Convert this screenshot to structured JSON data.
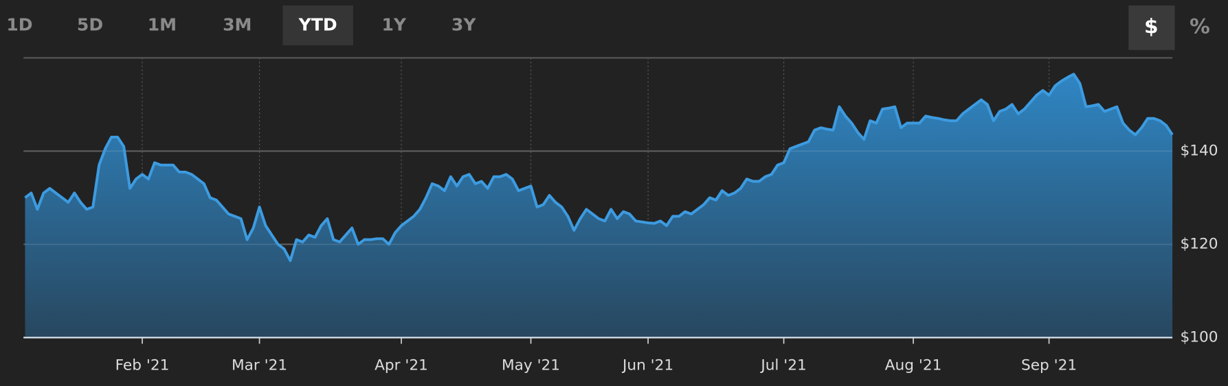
{
  "range_buttons": [
    "1D",
    "5D",
    "1M",
    "3M",
    "YTD",
    "1Y",
    "3Y"
  ],
  "selected_range": "YTD",
  "unit_buttons": [
    "$",
    "%"
  ],
  "selected_unit": "$",
  "chart_data": {
    "type": "area",
    "color": "#3d9be0",
    "categories": [
      null,
      null,
      null,
      null,
      null,
      null,
      null,
      null,
      null,
      null,
      null,
      null,
      null,
      null,
      null,
      null,
      null,
      null,
      null,
      "Feb '21",
      null,
      null,
      null,
      null,
      null,
      null,
      null,
      null,
      null,
      null,
      null,
      null,
      null,
      null,
      null,
      null,
      null,
      null,
      "Mar '21",
      null,
      null,
      null,
      null,
      null,
      null,
      null,
      null,
      null,
      null,
      null,
      null,
      null,
      null,
      null,
      null,
      null,
      null,
      null,
      null,
      null,
      null,
      "Apr '21",
      null,
      null,
      null,
      null,
      null,
      null,
      null,
      null,
      null,
      null,
      null,
      null,
      null,
      null,
      null,
      null,
      null,
      null,
      null,
      null,
      "May '21",
      null,
      null,
      null,
      null,
      null,
      null,
      null,
      null,
      null,
      null,
      null,
      null,
      null,
      null,
      null,
      null,
      null,
      null,
      "Jun '21",
      null,
      null,
      null,
      null,
      null,
      null,
      null,
      null,
      null,
      null,
      null,
      null,
      null,
      null,
      null,
      null,
      null,
      null,
      null,
      null,
      null,
      "Jul '21",
      null,
      null,
      null,
      null,
      null,
      null,
      null,
      null,
      null,
      null,
      null,
      null,
      null,
      null,
      null,
      null,
      null,
      null,
      null,
      null,
      "Aug '21",
      null,
      null,
      null,
      null,
      null,
      null,
      null,
      null,
      null,
      null,
      null,
      null,
      null,
      null,
      null,
      null,
      null,
      null,
      null,
      null,
      null,
      "Sep '21",
      null,
      null,
      null,
      null,
      null,
      null,
      null,
      null,
      null,
      null,
      null,
      null,
      null,
      null,
      null,
      null,
      null,
      null,
      null,
      null
    ],
    "values": [
      130,
      131,
      127.5,
      131,
      132,
      131,
      130,
      129,
      131,
      129,
      127.5,
      128,
      137,
      140.5,
      143,
      143,
      141,
      132,
      134,
      135,
      134,
      137.5,
      137,
      137,
      137,
      135.5,
      135.5,
      135,
      134,
      133,
      130,
      129.5,
      128,
      126.5,
      126,
      125.5,
      121,
      123.5,
      128,
      124,
      122,
      120,
      119,
      116.5,
      121,
      120.5,
      122,
      121.5,
      124,
      125.5,
      121,
      120.5,
      122,
      123.5,
      120,
      121,
      121,
      121.2,
      121.2,
      120,
      122.5,
      124,
      125,
      126,
      127.5,
      130,
      133,
      132.5,
      131.5,
      134.5,
      132.5,
      134.5,
      135,
      133,
      133.5,
      132,
      134.5,
      134.5,
      135,
      134,
      131.5,
      132,
      132.5,
      128,
      128.5,
      130.5,
      129,
      128,
      126,
      123,
      125.5,
      127.5,
      126.5,
      125.5,
      125,
      127.5,
      125.5,
      127,
      126.5,
      125,
      124.8,
      124.6,
      124.5,
      125,
      124,
      126,
      126,
      127,
      126.5,
      127.5,
      128.5,
      130,
      129.5,
      131.5,
      130.5,
      131,
      132,
      134,
      133.5,
      133.5,
      134.5,
      135,
      137,
      137.5,
      140.5,
      141,
      141.5,
      142,
      144.5,
      145,
      144.7,
      144.5,
      149.5,
      147.5,
      146,
      144,
      142.5,
      146.5,
      146,
      149,
      149.2,
      149.5,
      145,
      146,
      146,
      146,
      147.5,
      147.2,
      147,
      146.7,
      146.5,
      146.5,
      148,
      149,
      150,
      151,
      150,
      146.5,
      148.5,
      149,
      150,
      148,
      149,
      150.5,
      152,
      153,
      152,
      154,
      155,
      155.8,
      156.5,
      154.5,
      149.5,
      149.7,
      150,
      148.5,
      149,
      149.5,
      146,
      144.5,
      143.5,
      145,
      147,
      147,
      146.5,
      145.5,
      143.5
    ],
    "ylim": [
      100,
      160
    ],
    "yticks": [
      {
        "value": 100,
        "label": "$100"
      },
      {
        "value": 120,
        "label": "$120"
      },
      {
        "value": 140,
        "label": "$140"
      }
    ],
    "grid": true
  }
}
